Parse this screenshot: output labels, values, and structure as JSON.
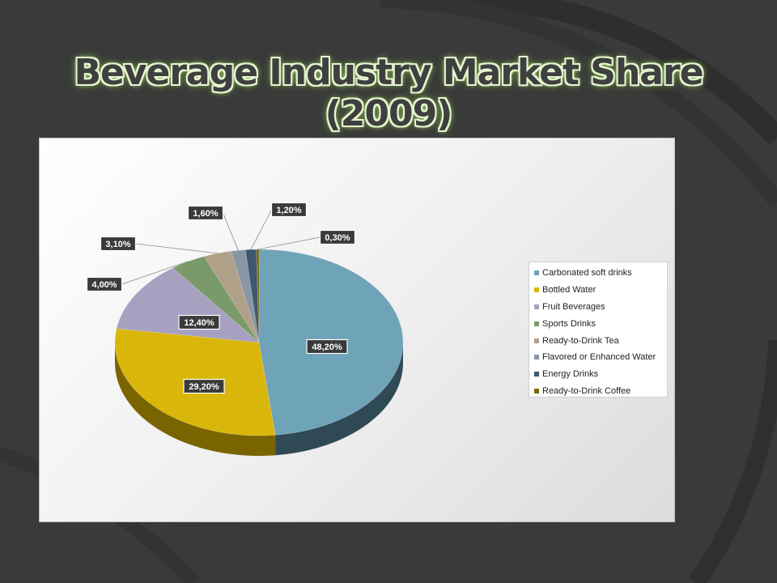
{
  "slide": {
    "title": "Beverage Industry Market Share (2009)"
  },
  "chart_data": {
    "type": "pie",
    "title": "",
    "legend_position": "right",
    "categories": [
      "Carbonated soft drinks",
      "Bottled Water",
      "Fruit Beverages",
      "Sports Drinks",
      "Ready-to-Drink Tea",
      "Flavored or Enhanced Water",
      "Energy Drinks",
      "Ready-to-Drink Coffee"
    ],
    "values": [
      48.2,
      29.2,
      12.4,
      4.0,
      3.1,
      1.6,
      1.2,
      0.3
    ],
    "data_labels": [
      "48,20%",
      "29,20%",
      "12,40%",
      "4,00%",
      "3,10%",
      "1,60%",
      "1,20%",
      "0,30%"
    ],
    "colors": [
      "#6fa3b8",
      "#d9b70a",
      "#a8a0c0",
      "#7a9a6a",
      "#b0a088",
      "#8a96a6",
      "#3e5870",
      "#7a6a10"
    ],
    "side_colors": [
      "#2f4a55",
      "#7a6400",
      "#555070",
      "#3d5033",
      "#5a5040",
      "#4a525e",
      "#1e2e3a",
      "#3e3608"
    ]
  }
}
